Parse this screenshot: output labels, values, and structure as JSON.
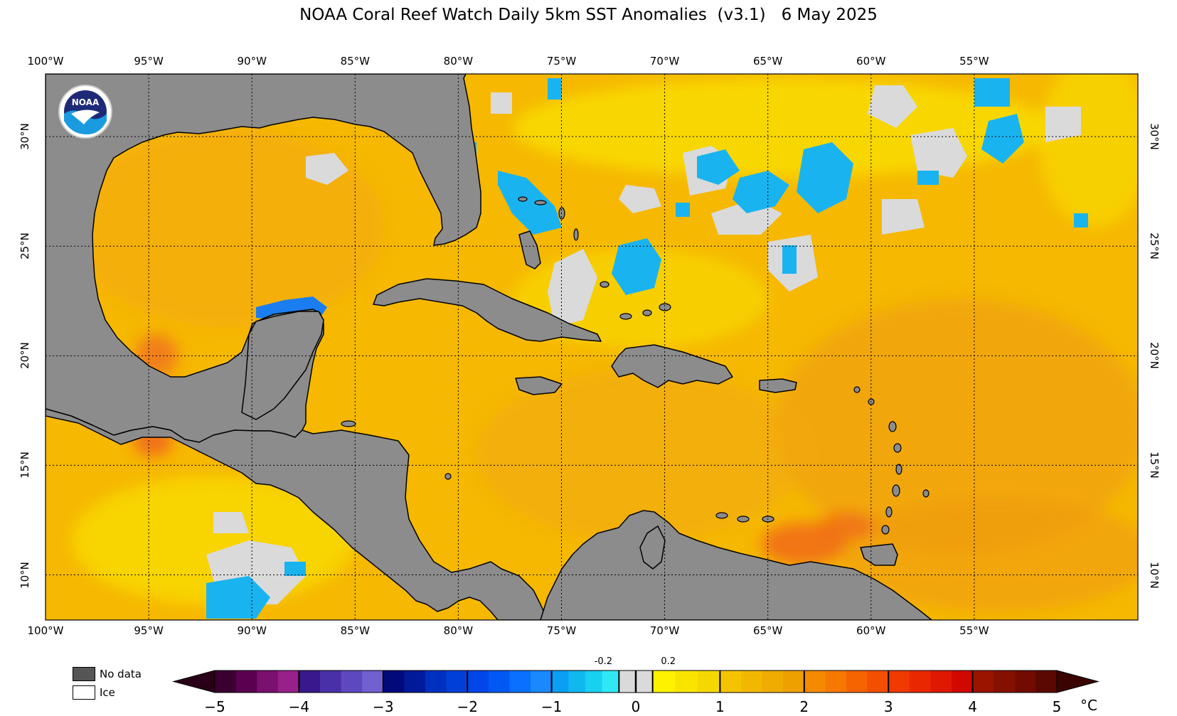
{
  "title": "NOAA Coral Reef Watch Daily 5km SST Anomalies  (v3.1)   6 May 2025",
  "logo_text": "NOAA",
  "map": {
    "lon_labels": [
      "100°W",
      "95°W",
      "90°W",
      "85°W",
      "80°W",
      "75°W",
      "70°W",
      "65°W",
      "60°W",
      "55°W"
    ],
    "lat_labels": [
      "30°N",
      "25°N",
      "20°N",
      "15°N",
      "10°N"
    ],
    "colors": {
      "land": "#8c8c8c",
      "ocean_base": "#f6b800",
      "warm": "#f28a14",
      "neutral": "#dadada",
      "cool": "#19b4f0"
    }
  },
  "legend": {
    "no_data": {
      "label": "No data",
      "color": "#555555"
    },
    "ice": {
      "label": "Ice",
      "color": "#ffffff"
    }
  },
  "colorbar": {
    "ticks": [
      "−5",
      "−4",
      "−3",
      "−2",
      "−1",
      "0",
      "1",
      "2",
      "3",
      "4",
      "5"
    ],
    "small_ticks": [
      "-0.2",
      "0.2"
    ],
    "unit": "°C",
    "min": -5,
    "max": 5
  }
}
